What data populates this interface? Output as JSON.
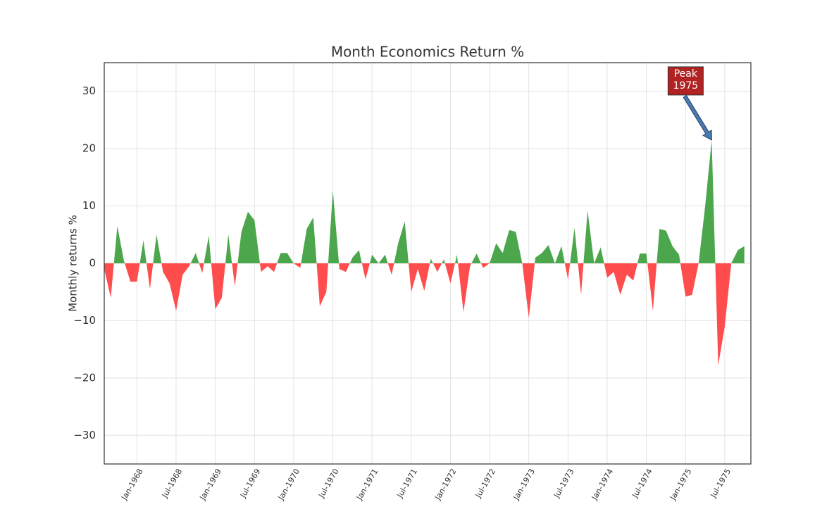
{
  "chart_data": {
    "type": "area",
    "title": "Month Economics Return %",
    "ylabel": "Monthly returns %",
    "x": [
      "Aug-1967",
      "Sep-1967",
      "Oct-1967",
      "Nov-1967",
      "Dec-1967",
      "Jan-1968",
      "Feb-1968",
      "Mar-1968",
      "Apr-1968",
      "May-1968",
      "Jun-1968",
      "Jul-1968",
      "Aug-1968",
      "Sep-1968",
      "Oct-1968",
      "Nov-1968",
      "Dec-1968",
      "Jan-1969",
      "Feb-1969",
      "Mar-1969",
      "Apr-1969",
      "May-1969",
      "Jun-1969",
      "Jul-1969",
      "Aug-1969",
      "Sep-1969",
      "Oct-1969",
      "Nov-1969",
      "Dec-1969",
      "Jan-1970",
      "Feb-1970",
      "Mar-1970",
      "Apr-1970",
      "May-1970",
      "Jun-1970",
      "Jul-1970",
      "Aug-1970",
      "Sep-1970",
      "Oct-1970",
      "Nov-1970",
      "Dec-1970",
      "Jan-1971",
      "Feb-1971",
      "Mar-1971",
      "Apr-1971",
      "May-1971",
      "Jun-1971",
      "Jul-1971",
      "Aug-1971",
      "Sep-1971",
      "Oct-1971",
      "Nov-1971",
      "Dec-1971",
      "Jan-1972",
      "Feb-1972",
      "Mar-1972",
      "Apr-1972",
      "May-1972",
      "Jun-1972",
      "Jul-1972",
      "Aug-1972",
      "Sep-1972",
      "Oct-1972",
      "Nov-1972",
      "Dec-1972",
      "Jan-1973",
      "Feb-1973",
      "Mar-1973",
      "Apr-1973",
      "May-1973",
      "Jun-1973",
      "Jul-1973",
      "Aug-1973",
      "Sep-1973",
      "Oct-1973",
      "Nov-1973",
      "Dec-1973",
      "Jan-1974",
      "Feb-1974",
      "Mar-1974",
      "Apr-1974",
      "May-1974",
      "Jun-1974",
      "Jul-1974",
      "Aug-1974",
      "Sep-1974",
      "Oct-1974",
      "Nov-1974",
      "Dec-1974",
      "Jan-1975",
      "Feb-1975",
      "Mar-1975",
      "Apr-1975",
      "May-1975",
      "Jun-1975",
      "Jul-1975",
      "Aug-1975",
      "Sep-1975",
      "Oct-1975"
    ],
    "values": [
      -1,
      -6,
      6.5,
      0.5,
      -3.2,
      -3.2,
      4,
      -4.5,
      5,
      -1.5,
      -3.5,
      -8.3,
      -2,
      -0.5,
      1.8,
      -1.7,
      4.8,
      -8,
      -6,
      5,
      -4,
      5.5,
      9,
      7.5,
      -1.5,
      -0.5,
      -1.5,
      1.8,
      1.8,
      0,
      -0.8,
      6,
      8,
      -7.5,
      -5,
      12.7,
      -1,
      -1.5,
      1,
      2.3,
      -2.8,
      1.5,
      0,
      1.5,
      -2,
      3.5,
      7.3,
      -5,
      -1,
      -4.8,
      0.8,
      -1.5,
      0.7,
      -3.5,
      1.5,
      -8.5,
      -0.5,
      1.7,
      -0.8,
      0,
      3.5,
      1.8,
      5.8,
      5.5,
      0,
      -9.5,
      1,
      1.8,
      3.2,
      0,
      3,
      -2.8,
      6.2,
      -5.5,
      9.2,
      0,
      2.8,
      -2.5,
      -1.5,
      -5.5,
      -2,
      -3,
      1.7,
      1.7,
      -8.3,
      6,
      5.7,
      3,
      1.5,
      -5.8,
      -5.5,
      0,
      10,
      21.5,
      -17.8,
      -11,
      0,
      2.3,
      3
    ],
    "positive_color": "#4ca64c",
    "negative_color": "#ff4c4c",
    "xticks": [
      "Jan-1968",
      "Jul-1968",
      "Jan-1969",
      "Jul-1969",
      "Jan-1970",
      "Jul-1970",
      "Jan-1971",
      "Jul-1971",
      "Jan-1972",
      "Jul-1972",
      "Jan-1973",
      "Jul-1973",
      "Jan-1974",
      "Jul-1974",
      "Jan-1975",
      "Jul-1975"
    ],
    "ylim": [
      -35,
      35
    ],
    "yticks": [
      {
        "value": -30,
        "label": "−30"
      },
      {
        "value": -20,
        "label": "−20"
      },
      {
        "value": -10,
        "label": "−10"
      },
      0,
      10,
      20,
      30
    ],
    "grid": true,
    "annotation": {
      "lines": [
        "Peak",
        "1975"
      ],
      "x": "May-1975",
      "box_color": "#b22222",
      "arrow_color": "#4a7ab0"
    }
  }
}
